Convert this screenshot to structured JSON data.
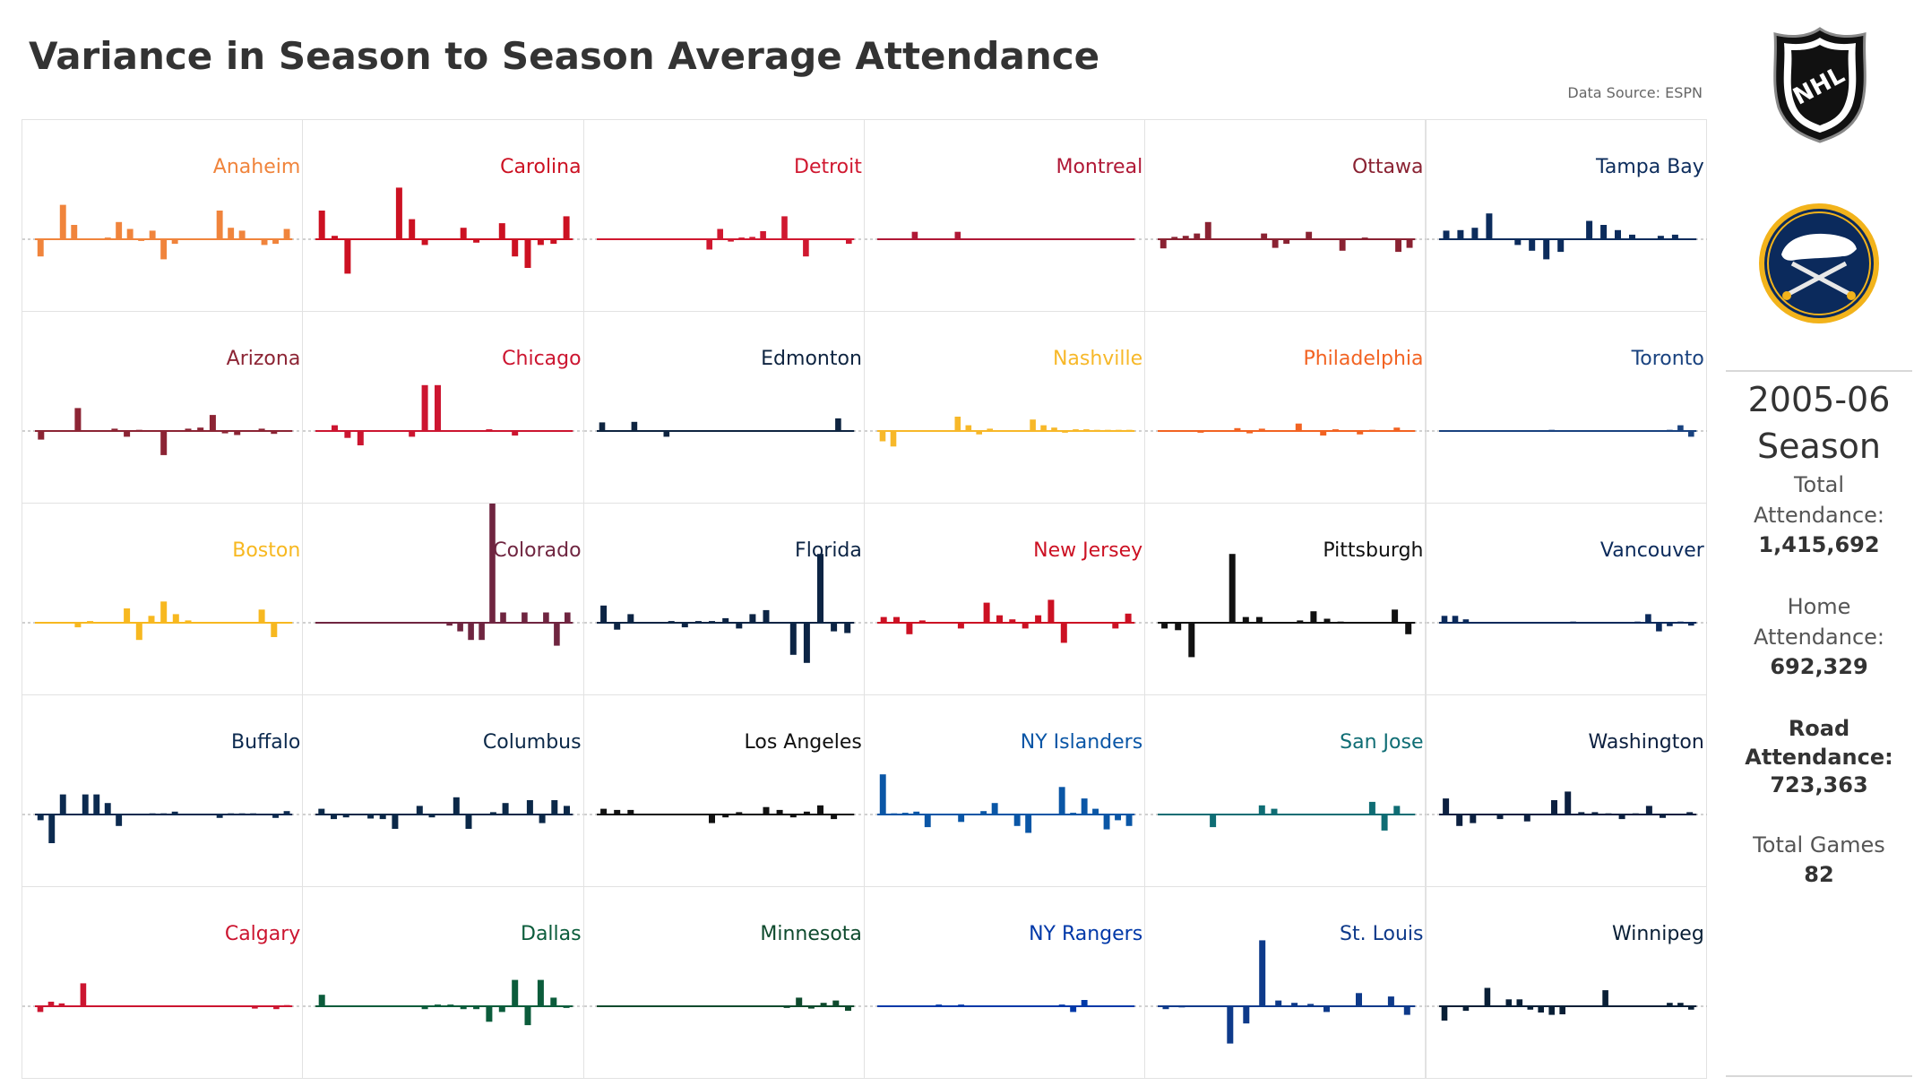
{
  "title": "Variance in Season to Season Average Attendance",
  "source": "Data Source: ESPN",
  "logos": {
    "league": "NHL",
    "team": "Buffalo Sabres"
  },
  "sidebar": {
    "season_year": "2005-06",
    "season_word": "Season",
    "total_label_1": "Total",
    "total_label_2": "Attendance:",
    "total_value": "1,415,692",
    "home_label_1": "Home",
    "home_label_2": "Attendance:",
    "home_value": "692,329",
    "road_label_1": "Road",
    "road_label_2": "Attendance:",
    "road_value": "723,363",
    "games_label": "Total Games",
    "games_value": "82"
  },
  "chart_data": {
    "type": "bar",
    "title": "Variance in Season to Season Average Attendance",
    "layout": "small multiples, 5 rows x 6 columns",
    "baseline": 0,
    "note": "Relative variance per season index (values estimated, unitless)",
    "teams": [
      {
        "name": "Anaheim",
        "color": "#f0843c",
        "values": [
          -3,
          0,
          6,
          2.5,
          0,
          0,
          0.3,
          3,
          1.8,
          -0.3,
          1.5,
          -3.5,
          -0.8,
          0,
          0,
          0,
          5,
          2,
          1.5,
          0,
          -1,
          -0.8,
          1.8
        ]
      },
      {
        "name": "Carolina",
        "color": "#cc1122",
        "values": [
          5,
          0.6,
          -6,
          0,
          0,
          0,
          9,
          3.5,
          -1,
          0,
          0,
          2,
          -0.6,
          0,
          2.8,
          -3,
          -5,
          -1,
          -0.8,
          4
        ]
      },
      {
        "name": "Detroit",
        "color": "#d01830",
        "values": [
          0,
          0,
          0,
          0,
          0,
          0,
          0,
          0,
          0,
          0,
          -1.8,
          1.8,
          -0.4,
          0.3,
          0.4,
          1.4,
          0,
          4,
          0,
          -3,
          0,
          0,
          0,
          -0.8
        ]
      },
      {
        "name": "Montreal",
        "color": "#b01836",
        "values": [
          0,
          0,
          0,
          1.3,
          0,
          0,
          0,
          1.3,
          0,
          0,
          0,
          0,
          0,
          0,
          0,
          0,
          0,
          0,
          0,
          0,
          0,
          0,
          0,
          0
        ]
      },
      {
        "name": "Ottawa",
        "color": "#8a2232",
        "values": [
          -1.6,
          0.4,
          0.6,
          1,
          3,
          0,
          0,
          0,
          0,
          1,
          -1.5,
          -0.8,
          0,
          1.3,
          0,
          0,
          -2,
          0,
          0.3,
          0,
          0,
          -2.2,
          -1.5
        ]
      },
      {
        "name": "Tampa Bay",
        "color": "#0c2c5c",
        "values": [
          1.5,
          1.6,
          2,
          4.5,
          0,
          -1,
          -2,
          -3.5,
          -2.2,
          0,
          3.2,
          2.5,
          1.6,
          0.8,
          0,
          0.6,
          0.8,
          0
        ]
      },
      {
        "name": "Arizona",
        "color": "#8c2434",
        "values": [
          -1.5,
          0,
          0,
          4,
          0,
          0,
          0.4,
          -1,
          0.2,
          0,
          -4.2,
          0,
          0.4,
          0.6,
          2.8,
          -0.4,
          -0.7,
          0,
          0.4,
          -0.5,
          0
        ]
      },
      {
        "name": "Chicago",
        "color": "#cc1530",
        "values": [
          0,
          1,
          -1.2,
          -2.5,
          0,
          0,
          0,
          -1,
          8,
          8,
          0,
          0,
          0,
          0.3,
          0,
          -0.8,
          0,
          0,
          0,
          0
        ]
      },
      {
        "name": "Edmonton",
        "color": "#0e2440",
        "values": [
          1.5,
          0,
          0,
          1.6,
          0,
          0,
          -1,
          0,
          0,
          0,
          0,
          0,
          0,
          0,
          0,
          0,
          0,
          0,
          0,
          0,
          0,
          0,
          2.2,
          0
        ]
      },
      {
        "name": "Nashville",
        "color": "#f7b829",
        "values": [
          -1.8,
          -2.7,
          0,
          0,
          0,
          0,
          0,
          2.5,
          1,
          -0.6,
          0.4,
          0,
          0,
          0,
          2,
          1,
          0.6,
          -0.3,
          0.3,
          0.3,
          0.2,
          0.2,
          0.2,
          0.2
        ]
      },
      {
        "name": "Philadelphia",
        "color": "#f26322",
        "values": [
          0,
          0,
          0,
          -0.3,
          0,
          0,
          0.5,
          -0.4,
          0.4,
          0,
          0,
          1.3,
          0,
          -0.8,
          0.3,
          0,
          -0.6,
          0.2,
          0,
          0.6,
          0
        ]
      },
      {
        "name": "Toronto",
        "color": "#19427f",
        "values": [
          0,
          0,
          0,
          0,
          0,
          0,
          0,
          0,
          0,
          0,
          0.2,
          0,
          0,
          0,
          0,
          0,
          0,
          0,
          0,
          0,
          0,
          0.2,
          1,
          -1
        ]
      },
      {
        "name": "Boston",
        "color": "#f7b820",
        "values": [
          0,
          0,
          0,
          -0.8,
          0.3,
          0,
          0,
          2.5,
          -3,
          1.2,
          3.7,
          1.5,
          0.4,
          0,
          0,
          0,
          0,
          0,
          2.3,
          -2.5,
          0
        ]
      },
      {
        "name": "Colorado",
        "color": "#6f2540",
        "values": [
          0,
          0,
          0,
          0,
          0,
          0,
          0,
          0,
          0,
          0,
          0,
          0,
          -0.5,
          -1.5,
          -3,
          -3,
          21,
          1.8,
          0,
          1.8,
          0,
          1.8,
          -4,
          1.8
        ]
      },
      {
        "name": "Florida",
        "color": "#0c2444",
        "values": [
          3,
          -1.2,
          1.5,
          0,
          0,
          0.3,
          -0.8,
          0.3,
          0.3,
          0.8,
          -1,
          1.5,
          2.2,
          0,
          -5.6,
          -7,
          12,
          -1.5,
          -1.8
        ]
      },
      {
        "name": "New Jersey",
        "color": "#cc1123",
        "values": [
          1,
          1,
          -2,
          0.4,
          0,
          0,
          -1,
          0,
          3.5,
          1.3,
          0.6,
          -1,
          1.3,
          4,
          -3.5,
          0,
          0,
          0,
          -1,
          1.6
        ]
      },
      {
        "name": "Pittsburgh",
        "color": "#111111",
        "values": [
          -1,
          -1.3,
          -6,
          0,
          0,
          12,
          1,
          1,
          0,
          0,
          0.4,
          2,
          0.7,
          0.2,
          0,
          0,
          0,
          2.3,
          -2
        ]
      },
      {
        "name": "Vancouver",
        "color": "#0b2a5b",
        "values": [
          1.2,
          1.2,
          0.6,
          0,
          0,
          0,
          0,
          0,
          0,
          0,
          0,
          0,
          0.2,
          0,
          0,
          0,
          0,
          0,
          0.2,
          1.5,
          -1.5,
          -0.6,
          0.2,
          -0.5
        ]
      },
      {
        "name": "Buffalo",
        "color": "#0c2a4f",
        "values": [
          -1,
          -5,
          3.5,
          0,
          3.5,
          3.5,
          2,
          -2,
          0,
          0,
          0.2,
          0.2,
          0.5,
          0,
          0,
          0,
          -0.6,
          0.2,
          0.2,
          0.2,
          0,
          -0.6,
          0.6
        ]
      },
      {
        "name": "Columbus",
        "color": "#0b2848",
        "values": [
          1,
          -0.8,
          -0.5,
          0,
          -0.7,
          -0.8,
          -2.5,
          0,
          1.5,
          -0.5,
          0,
          3,
          -2.5,
          0,
          0.4,
          2,
          0,
          2.5,
          -1.5,
          2.5,
          1.5
        ]
      },
      {
        "name": "Los Angeles",
        "color": "#111111",
        "values": [
          1,
          0.8,
          0.8,
          0,
          0,
          0,
          0,
          0,
          -1.5,
          -0.5,
          0.4,
          0,
          1.3,
          0.8,
          -0.5,
          0.5,
          1.6,
          -0.8,
          0
        ]
      },
      {
        "name": "NY Islanders",
        "color": "#0a56a6",
        "values": [
          7,
          0.2,
          0.3,
          0.5,
          -2.2,
          0,
          0,
          -1.3,
          0,
          0.6,
          2,
          0,
          -2,
          -3.2,
          0,
          0,
          4.8,
          0.3,
          2.8,
          1,
          -2.6,
          -1,
          -2
        ]
      },
      {
        "name": "San Jose",
        "color": "#0f6d74",
        "values": [
          0,
          0,
          0,
          0,
          -2.2,
          0,
          0,
          0,
          1.6,
          1,
          0,
          0,
          0,
          0,
          0,
          0,
          0,
          2.2,
          -2.8,
          1.5,
          0
        ]
      },
      {
        "name": "Washington",
        "color": "#0c2040",
        "values": [
          2.8,
          -2,
          -1.5,
          0,
          -0.8,
          0,
          -1.2,
          0,
          2.5,
          4,
          0.4,
          0.4,
          0.2,
          -0.8,
          0.2,
          1.5,
          -0.6,
          0,
          0.4
        ]
      },
      {
        "name": "Calgary",
        "color": "#cc1530",
        "values": [
          -1,
          0.8,
          0.5,
          0,
          4,
          0,
          0,
          0,
          0,
          0,
          0,
          0,
          0,
          0,
          0,
          0,
          0,
          0,
          0,
          0,
          -0.4,
          0,
          -0.5,
          0.2
        ]
      },
      {
        "name": "Dallas",
        "color": "#0b5c3b",
        "values": [
          2,
          0,
          0,
          0,
          0,
          0,
          0,
          0,
          -0.5,
          0.3,
          0.3,
          -0.5,
          -0.5,
          -2.7,
          -1,
          4.6,
          -3.3,
          4.6,
          1.5,
          -0.3
        ]
      },
      {
        "name": "Minnesota",
        "color": "#0e4a2d",
        "values": [
          0,
          0,
          0,
          0,
          0,
          0,
          0,
          0,
          0,
          0,
          0,
          0,
          0,
          0,
          0,
          -0.3,
          1.5,
          -0.4,
          0.6,
          1,
          -0.8
        ]
      },
      {
        "name": "NY Rangers",
        "color": "#0038a8",
        "values": [
          0,
          0,
          0,
          0,
          0,
          0.3,
          0,
          0.3,
          0,
          0,
          0,
          0,
          0,
          0,
          0,
          0,
          0.3,
          -1,
          1.1,
          0,
          0,
          0,
          0
        ]
      },
      {
        "name": "St. Louis",
        "color": "#0e3a8a",
        "values": [
          -0.5,
          -0.2,
          0,
          0,
          -6.5,
          -3,
          11.5,
          1,
          0.6,
          0.4,
          -1,
          0,
          2.3,
          0,
          1.7,
          -1.5
        ]
      },
      {
        "name": "Winnipeg",
        "color": "#091f36",
        "values": [
          -2.5,
          0,
          -0.8,
          0,
          3.2,
          0,
          1.2,
          1.2,
          -0.6,
          -1.1,
          -1.5,
          -1.4,
          0,
          0,
          0,
          2.8,
          0,
          0,
          0,
          0,
          0,
          0.6,
          0.6,
          -0.6
        ]
      }
    ]
  }
}
